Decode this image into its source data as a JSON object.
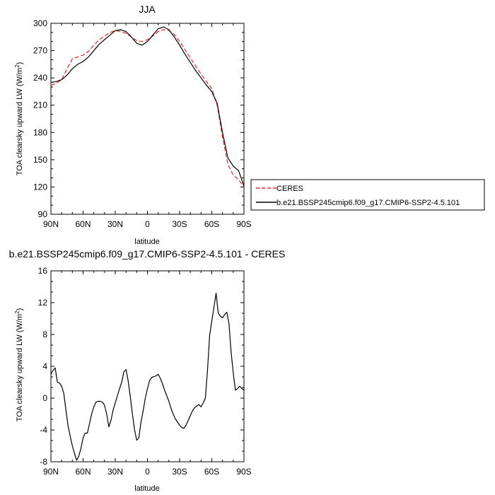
{
  "chart_data": [
    {
      "type": "line",
      "title": "JJA",
      "xlabel": "latitude",
      "ylabel": "TOA clearsky upward LW (W/m",
      "ylabel_sup": "2",
      "ylabel_close": ")",
      "xlim": [
        90,
        -90
      ],
      "ylim": [
        90,
        300
      ],
      "x_ticks": [
        90,
        60,
        30,
        0,
        -30,
        -60,
        -90
      ],
      "x_tick_labels": [
        "90N",
        "60N",
        "30N",
        "0",
        "30S",
        "60S",
        "90S"
      ],
      "y_ticks": [
        90,
        120,
        150,
        180,
        210,
        240,
        270,
        300
      ],
      "y_tick_labels": [
        "90",
        "120",
        "150",
        "180",
        "210",
        "240",
        "270",
        "300"
      ],
      "grid": false,
      "legend": "right",
      "series": [
        {
          "name": "CERES",
          "color": "#e8262b",
          "dash": "dashed",
          "x": [
            90,
            85,
            80,
            75,
            70,
            65,
            60,
            55,
            50,
            45,
            40,
            35,
            30,
            25,
            20,
            15,
            10,
            5,
            0,
            -5,
            -10,
            -15,
            -20,
            -25,
            -30,
            -35,
            -40,
            -45,
            -50,
            -55,
            -60,
            -65,
            -70,
            -75,
            -80,
            -85,
            -90
          ],
          "y": [
            232,
            234,
            238,
            250,
            261,
            263,
            265,
            269,
            276,
            282,
            286,
            290,
            292,
            291,
            289,
            285,
            281,
            280,
            282,
            286,
            291,
            293,
            292,
            288,
            280,
            271,
            262,
            253,
            244,
            236,
            228,
            210,
            175,
            145,
            133,
            128,
            120
          ]
        },
        {
          "name": "b.e21.BSSP245cmip6.f09_g17.CMIP6-SSP2-4.5.101",
          "color": "#000000",
          "dash": "solid",
          "x": [
            90,
            85,
            80,
            75,
            70,
            65,
            60,
            55,
            50,
            45,
            40,
            35,
            30,
            25,
            20,
            15,
            10,
            5,
            0,
            -5,
            -10,
            -15,
            -20,
            -25,
            -30,
            -35,
            -40,
            -45,
            -50,
            -55,
            -60,
            -65,
            -70,
            -75,
            -80,
            -85,
            -90
          ],
          "y": [
            235,
            236,
            238,
            243,
            250,
            255,
            258,
            263,
            270,
            277,
            282,
            287,
            292,
            293,
            291,
            285,
            278,
            276,
            280,
            287,
            294,
            296,
            293,
            285,
            276,
            266,
            257,
            248,
            240,
            232,
            225,
            212,
            180,
            152,
            143,
            138,
            121
          ]
        }
      ]
    },
    {
      "type": "line",
      "title": "b.e21.BSSP245cmip6.f09_g17.CMIP6-SSP2-4.5.101 - CERES",
      "xlabel": "latitude",
      "ylabel": "TOA clearsky upward LW (W/m",
      "ylabel_sup": "2",
      "ylabel_close": ")",
      "xlim": [
        90,
        -90
      ],
      "ylim": [
        -8,
        16
      ],
      "x_ticks": [
        90,
        60,
        30,
        0,
        -30,
        -60,
        -90
      ],
      "x_tick_labels": [
        "90N",
        "60N",
        "30N",
        "0",
        "30S",
        "60S",
        "90S"
      ],
      "y_ticks": [
        -8,
        -4,
        0,
        4,
        8,
        12,
        16
      ],
      "y_tick_labels": [
        "-8",
        "-4",
        "0",
        "4",
        "8",
        "12",
        "16"
      ],
      "grid": false,
      "series": [
        {
          "color": "#000000",
          "x": [
            90,
            88,
            86,
            84,
            82,
            80,
            78,
            76,
            74,
            72,
            70,
            68,
            66,
            64,
            62,
            60,
            58,
            56,
            54,
            52,
            50,
            48,
            46,
            44,
            42,
            40,
            38,
            36,
            34,
            32,
            30,
            28,
            26,
            24,
            22,
            20,
            18,
            16,
            14,
            12,
            10,
            8,
            6,
            4,
            2,
            0,
            -2,
            -4,
            -6,
            -8,
            -10,
            -12,
            -14,
            -16,
            -18,
            -20,
            -22,
            -24,
            -26,
            -28,
            -30,
            -32,
            -34,
            -36,
            -38,
            -40,
            -42,
            -44,
            -46,
            -48,
            -50,
            -52,
            -54,
            -56,
            -58,
            -60,
            -62,
            -64,
            -66,
            -68,
            -70,
            -72,
            -74,
            -76,
            -78,
            -80,
            -82,
            -84,
            -86,
            -88,
            -90
          ],
          "y": [
            3.0,
            3.5,
            3.8,
            2.0,
            1.9,
            1.5,
            0.6,
            -1.5,
            -3.5,
            -4.8,
            -6.0,
            -7.0,
            -7.8,
            -7.3,
            -6.3,
            -5.0,
            -4.4,
            -4.4,
            -3.2,
            -2.0,
            -1.1,
            -0.5,
            -0.4,
            -0.4,
            -0.5,
            -0.9,
            -2.0,
            -3.6,
            -2.8,
            -1.5,
            -0.6,
            0.3,
            1.2,
            2.0,
            3.3,
            3.6,
            2.2,
            0.2,
            -2.0,
            -4.0,
            -5.3,
            -5.0,
            -3.0,
            -1.6,
            0.0,
            1.2,
            2.2,
            2.6,
            2.7,
            2.8,
            3.0,
            2.5,
            1.8,
            1.0,
            0.3,
            -0.4,
            -1.3,
            -2.0,
            -2.6,
            -3.0,
            -3.4,
            -3.7,
            -3.8,
            -3.4,
            -2.8,
            -2.2,
            -1.6,
            -1.2,
            -1.0,
            -0.8,
            -1.1,
            -0.6,
            0.0,
            3.5,
            7.9,
            9.7,
            11.4,
            13.2,
            10.7,
            10.3,
            10.1,
            10.5,
            10.8,
            9.4,
            5.8,
            3.2,
            1.0,
            1.2,
            1.5,
            1.2,
            1.0
          ]
        }
      ]
    }
  ]
}
